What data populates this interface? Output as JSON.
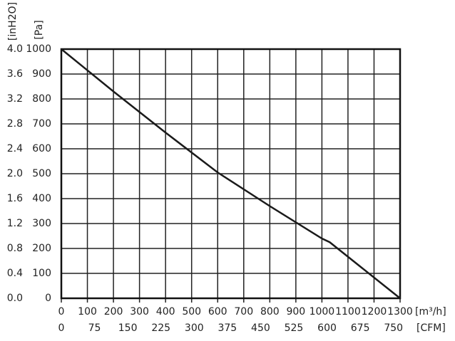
{
  "chart_data": {
    "type": "line",
    "x_label": "[m³/h]",
    "x2_label": "[CFM]",
    "y_label": "[Pa]",
    "y2_label": "[inH2O]",
    "x": [
      0,
      200,
      400,
      600,
      800,
      1000,
      1030,
      1300
    ],
    "series": [
      {
        "color": "#1a1a1a",
        "values": [
          1000,
          830,
          665,
          505,
          370,
          240,
          225,
          0
        ]
      }
    ],
    "xlim": [
      0,
      1300
    ],
    "xticks": [
      0,
      100,
      200,
      300,
      400,
      500,
      600,
      700,
      800,
      900,
      1000,
      1100,
      1200,
      1300
    ],
    "x2lim": [
      0,
      765
    ],
    "x2ticks": [
      0,
      75,
      150,
      225,
      300,
      375,
      450,
      525,
      600,
      675,
      750
    ],
    "ylim": [
      0,
      1000
    ],
    "yticks": [
      0,
      100,
      200,
      300,
      400,
      500,
      600,
      700,
      800,
      900,
      1000
    ],
    "y2lim": [
      0,
      4
    ],
    "y2ticks": [
      {
        "value": 0,
        "label": "0.0"
      },
      0.4,
      0.8,
      1.2,
      1.6,
      {
        "value": 2,
        "label": "2.0"
      },
      2.4,
      2.8,
      3.2,
      3.6,
      {
        "value": 4,
        "label": "4.0"
      }
    ],
    "grid": true
  }
}
